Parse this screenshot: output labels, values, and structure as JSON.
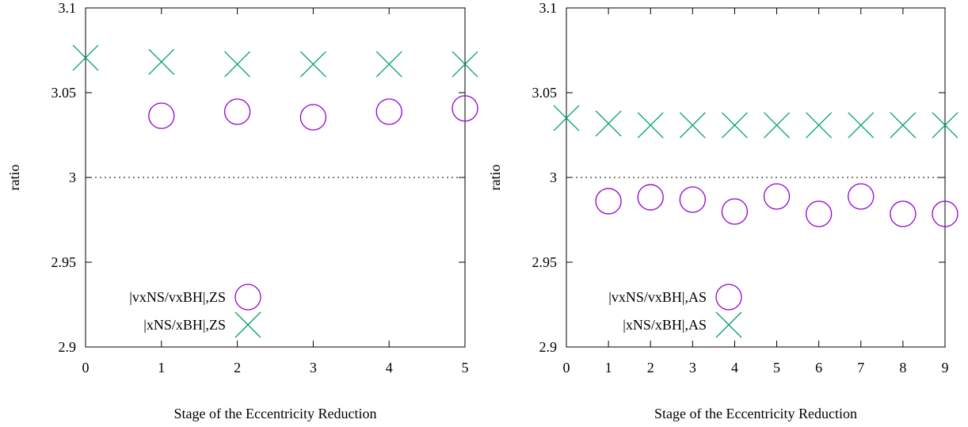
{
  "chart_data": [
    {
      "type": "scatter",
      "xlabel": "Stage of the Eccentricity Reduction",
      "ylabel": "ratio",
      "xlim": [
        0,
        5
      ],
      "xticks": [
        0,
        1,
        2,
        3,
        4,
        5
      ],
      "ylim": [
        2.9,
        3.1
      ],
      "yticks": [
        2.9,
        2.95,
        3,
        3.05,
        3.1
      ],
      "reference_line": 3,
      "legend": "lower left",
      "series": [
        {
          "name": "|vxNS/vxBH|,ZS",
          "color": "#9400d3",
          "marker": "circle",
          "x": [
            1,
            2,
            3,
            4,
            5
          ],
          "values": [
            3.0364,
            3.0388,
            3.0355,
            3.0388,
            3.0407
          ]
        },
        {
          "name": "|xNS/xBH|,ZS",
          "color": "#009e73",
          "marker": "cross",
          "x": [
            0,
            1,
            2,
            3,
            4,
            5
          ],
          "values": [
            3.0706,
            3.0682,
            3.0668,
            3.0668,
            3.0668,
            3.0668
          ]
        }
      ]
    },
    {
      "type": "scatter",
      "xlabel": "Stage of the Eccentricity Reduction",
      "ylabel": "ratio",
      "xlim": [
        0,
        9
      ],
      "xticks": [
        0,
        1,
        2,
        3,
        4,
        5,
        6,
        7,
        8,
        9
      ],
      "ylim": [
        2.9,
        3.1
      ],
      "yticks": [
        2.9,
        2.95,
        3,
        3.05,
        3.1
      ],
      "reference_line": 3,
      "legend": "lower left",
      "series": [
        {
          "name": "|vxNS/vxBH|,AS",
          "color": "#9400d3",
          "marker": "circle",
          "x": [
            1,
            2,
            3,
            4,
            5,
            6,
            7,
            8,
            9
          ],
          "values": [
            2.986,
            2.9883,
            2.9869,
            2.9799,
            2.9888,
            2.9785,
            2.9888,
            2.9785,
            2.9785
          ]
        },
        {
          "name": "|xNS/xBH|,AS",
          "color": "#009e73",
          "marker": "cross",
          "x": [
            0,
            1,
            2,
            3,
            4,
            5,
            6,
            7,
            8,
            9
          ],
          "values": [
            3.035,
            3.0318,
            3.0308,
            3.0308,
            3.0308,
            3.0308,
            3.0308,
            3.0308,
            3.0308,
            3.0308
          ]
        }
      ]
    }
  ]
}
